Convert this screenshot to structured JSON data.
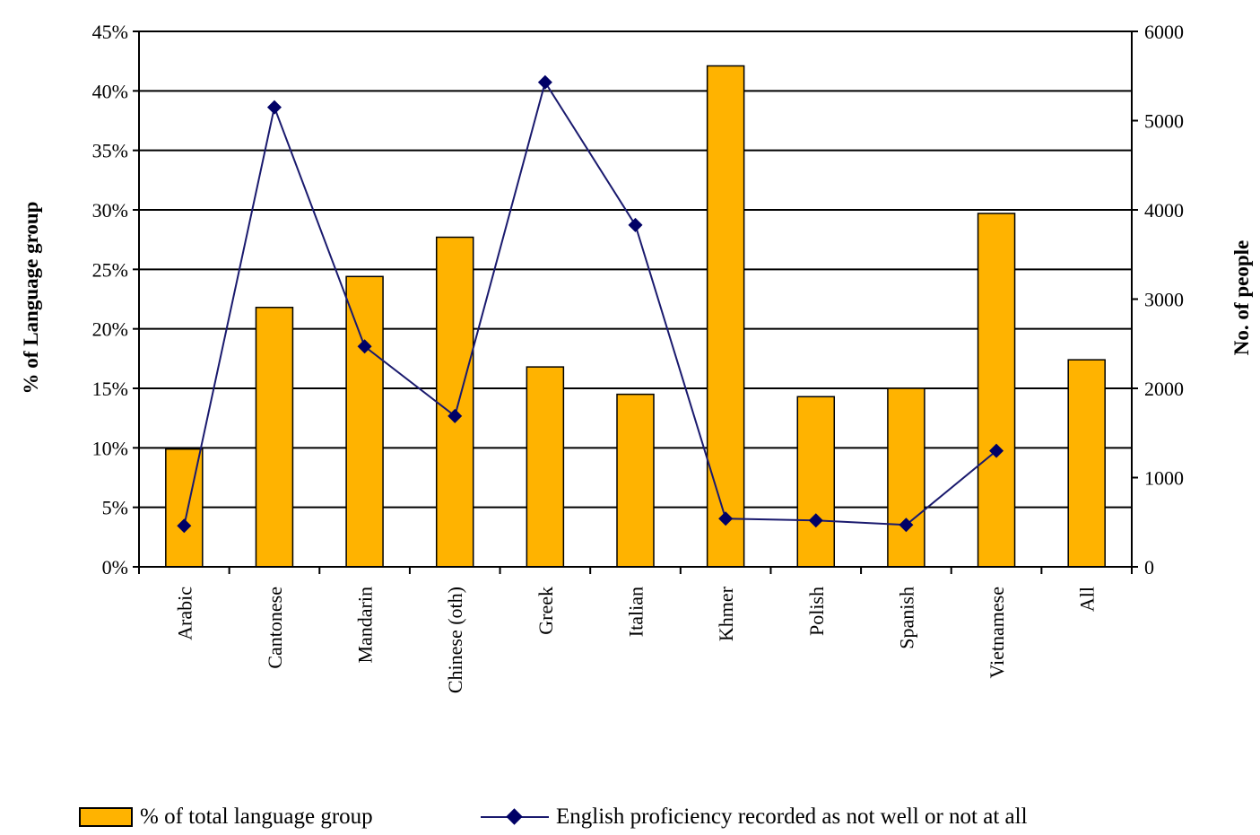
{
  "chart_data": {
    "type": "bar",
    "categories": [
      "Arabic",
      "Cantonese",
      "Mandarin",
      "Chinese (oth)",
      "Greek",
      "Italian",
      "Khmer",
      "Polish",
      "Spanish",
      "Vietnamese",
      "All"
    ],
    "series": [
      {
        "name": "% of total language group",
        "type": "bar",
        "axis": "left",
        "values": [
          9.9,
          21.8,
          24.4,
          27.7,
          16.8,
          14.5,
          42.1,
          14.3,
          15.0,
          29.7,
          17.4
        ]
      },
      {
        "name": "English proficiency recorded as not well or not at all",
        "type": "line",
        "axis": "right",
        "values": [
          460,
          5150,
          2470,
          1690,
          5430,
          3830,
          540,
          520,
          470,
          1300,
          null
        ]
      }
    ],
    "yleft": {
      "label": "% of Language group",
      "ylim": [
        0,
        45
      ],
      "ticks": [
        "0%",
        "5%",
        "10%",
        "15%",
        "20%",
        "25%",
        "30%",
        "35%",
        "40%",
        "45%"
      ]
    },
    "yright": {
      "label": "No. of people",
      "ylim": [
        0,
        6000
      ],
      "ticks": [
        "0",
        "1000",
        "2000",
        "3000",
        "4000",
        "5000",
        "6000"
      ]
    },
    "title": "",
    "xlabel": "",
    "grid": true,
    "legend_position": "bottom",
    "colors": {
      "bar": "#FFB300",
      "line": "#1a1a6e",
      "marker": "#000066",
      "grid": "#000000"
    }
  }
}
